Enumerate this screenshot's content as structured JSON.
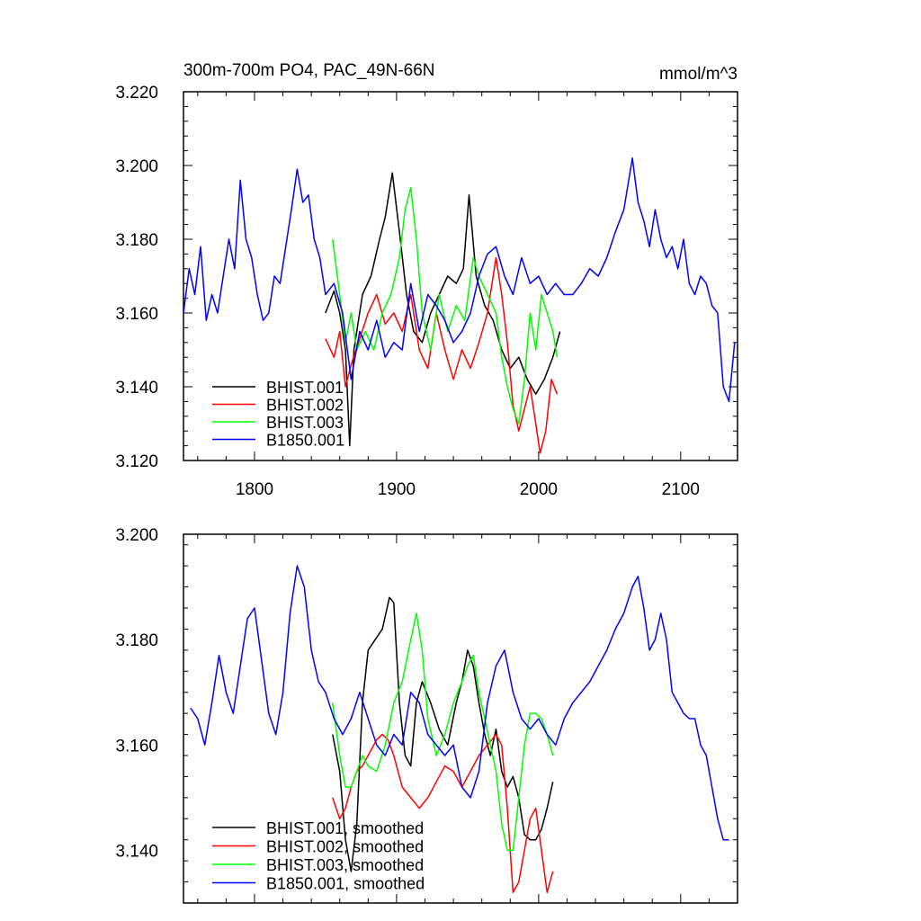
{
  "chart_data": [
    {
      "type": "line",
      "title": "300m-700m PO4, PAC_49N-66N",
      "units_label": "mmol/m^3",
      "xlim": [
        1750,
        2140
      ],
      "ylim": [
        3.12,
        3.22
      ],
      "xticks": [
        1800,
        1900,
        2000,
        2100
      ],
      "xtick_labels": [
        "1800",
        "1900",
        "2000",
        "2100"
      ],
      "yticks": [
        3.12,
        3.14,
        3.16,
        3.18,
        3.2,
        3.22
      ],
      "ytick_labels": [
        "3.120",
        "3.140",
        "3.160",
        "3.180",
        "3.200",
        "3.220"
      ],
      "legend_position": "bottom-left",
      "series": [
        {
          "name": "BHIST.001",
          "color": "#000000",
          "x": [
            1850,
            1856,
            1860,
            1864,
            1867,
            1870,
            1876,
            1882,
            1888,
            1892,
            1897,
            1902,
            1907,
            1912,
            1918,
            1924,
            1930,
            1936,
            1942,
            1947,
            1951,
            1956,
            1962,
            1968,
            1974,
            1980,
            1986,
            1992,
            1998,
            2004,
            2010,
            2015
          ],
          "y": [
            3.16,
            3.166,
            3.16,
            3.15,
            3.124,
            3.15,
            3.165,
            3.17,
            3.18,
            3.186,
            3.198,
            3.182,
            3.165,
            3.155,
            3.152,
            3.16,
            3.165,
            3.17,
            3.168,
            3.172,
            3.192,
            3.17,
            3.162,
            3.158,
            3.15,
            3.145,
            3.148,
            3.142,
            3.138,
            3.142,
            3.148,
            3.155
          ]
        },
        {
          "name": "BHIST.002",
          "color": "#ff0000",
          "x": [
            1850,
            1856,
            1860,
            1864,
            1868,
            1874,
            1880,
            1886,
            1892,
            1898,
            1904,
            1910,
            1916,
            1922,
            1928,
            1934,
            1940,
            1946,
            1952,
            1958,
            1964,
            1970,
            1974,
            1978,
            1982,
            1986,
            1990,
            1994,
            1998,
            2001,
            2005,
            2009,
            2013
          ],
          "y": [
            3.153,
            3.148,
            3.155,
            3.14,
            3.146,
            3.153,
            3.16,
            3.165,
            3.157,
            3.16,
            3.155,
            3.165,
            3.15,
            3.145,
            3.16,
            3.15,
            3.142,
            3.15,
            3.145,
            3.152,
            3.16,
            3.175,
            3.165,
            3.152,
            3.135,
            3.128,
            3.134,
            3.14,
            3.13,
            3.122,
            3.128,
            3.142,
            3.138
          ]
        },
        {
          "name": "BHIST.003",
          "color": "#00ff00",
          "x": [
            1855,
            1860,
            1864,
            1868,
            1872,
            1878,
            1884,
            1890,
            1896,
            1902,
            1906,
            1910,
            1914,
            1918,
            1924,
            1930,
            1936,
            1942,
            1948,
            1954,
            1958,
            1964,
            1970,
            1974,
            1978,
            1982,
            1986,
            1990,
            1994,
            1998,
            2002,
            2006,
            2010,
            2013
          ],
          "y": [
            3.18,
            3.165,
            3.152,
            3.16,
            3.15,
            3.155,
            3.15,
            3.16,
            3.165,
            3.175,
            3.188,
            3.194,
            3.18,
            3.16,
            3.15,
            3.165,
            3.155,
            3.162,
            3.158,
            3.175,
            3.17,
            3.165,
            3.16,
            3.148,
            3.14,
            3.134,
            3.13,
            3.142,
            3.16,
            3.15,
            3.165,
            3.16,
            3.155,
            3.148
          ]
        },
        {
          "name": "B1850.001",
          "color": "#0000ff",
          "x": [
            1750,
            1754,
            1758,
            1762,
            1766,
            1770,
            1774,
            1778,
            1782,
            1786,
            1790,
            1794,
            1798,
            1802,
            1806,
            1810,
            1814,
            1818,
            1822,
            1826,
            1830,
            1834,
            1838,
            1842,
            1846,
            1850,
            1856,
            1862,
            1868,
            1874,
            1880,
            1886,
            1892,
            1898,
            1904,
            1910,
            1916,
            1922,
            1928,
            1934,
            1940,
            1946,
            1952,
            1958,
            1964,
            1970,
            1976,
            1982,
            1988,
            1994,
            2000,
            2006,
            2012,
            2018,
            2024,
            2030,
            2036,
            2042,
            2048,
            2054,
            2060,
            2066,
            2070,
            2074,
            2078,
            2082,
            2086,
            2090,
            2094,
            2098,
            2102,
            2106,
            2110,
            2114,
            2118,
            2122,
            2126,
            2130,
            2134,
            2138
          ],
          "y": [
            3.16,
            3.172,
            3.165,
            3.178,
            3.158,
            3.165,
            3.16,
            3.17,
            3.18,
            3.172,
            3.196,
            3.18,
            3.175,
            3.165,
            3.158,
            3.16,
            3.17,
            3.168,
            3.178,
            3.188,
            3.199,
            3.19,
            3.192,
            3.18,
            3.175,
            3.165,
            3.168,
            3.16,
            3.142,
            3.155,
            3.15,
            3.158,
            3.148,
            3.152,
            3.15,
            3.168,
            3.155,
            3.165,
            3.162,
            3.158,
            3.152,
            3.155,
            3.16,
            3.17,
            3.176,
            3.178,
            3.17,
            3.165,
            3.175,
            3.168,
            3.17,
            3.165,
            3.168,
            3.165,
            3.165,
            3.168,
            3.172,
            3.17,
            3.175,
            3.182,
            3.188,
            3.202,
            3.19,
            3.185,
            3.178,
            3.188,
            3.18,
            3.175,
            3.178,
            3.172,
            3.18,
            3.168,
            3.165,
            3.17,
            3.168,
            3.162,
            3.16,
            3.14,
            3.136,
            3.152
          ]
        }
      ]
    },
    {
      "type": "line",
      "xlim": [
        1750,
        2140
      ],
      "ylim": [
        3.13,
        3.2
      ],
      "xticks": [
        1800,
        1900,
        2000,
        2100
      ],
      "yticks": [
        3.14,
        3.16,
        3.18,
        3.2
      ],
      "ytick_labels": [
        "3.140",
        "3.160",
        "3.180",
        "3.200"
      ],
      "legend_position": "bottom-left",
      "series": [
        {
          "name": "BHIST.001, smoothed",
          "color": "#000000",
          "x": [
            1855,
            1860,
            1864,
            1868,
            1872,
            1876,
            1880,
            1885,
            1890,
            1895,
            1898,
            1902,
            1906,
            1910,
            1914,
            1918,
            1924,
            1930,
            1936,
            1942,
            1946,
            1950,
            1954,
            1958,
            1962,
            1966,
            1970,
            1974,
            1978,
            1982,
            1986,
            1990,
            1994,
            1998,
            2002,
            2006,
            2010
          ],
          "y": [
            3.162,
            3.155,
            3.142,
            3.136,
            3.145,
            3.168,
            3.178,
            3.18,
            3.182,
            3.188,
            3.187,
            3.168,
            3.158,
            3.156,
            3.168,
            3.172,
            3.168,
            3.163,
            3.16,
            3.168,
            3.172,
            3.178,
            3.175,
            3.168,
            3.162,
            3.158,
            3.163,
            3.155,
            3.152,
            3.154,
            3.15,
            3.143,
            3.142,
            3.142,
            3.144,
            3.148,
            3.153
          ]
        },
        {
          "name": "BHIST.002, smoothed",
          "color": "#ff0000",
          "x": [
            1855,
            1860,
            1864,
            1868,
            1872,
            1876,
            1880,
            1886,
            1890,
            1894,
            1898,
            1904,
            1910,
            1916,
            1922,
            1928,
            1934,
            1940,
            1946,
            1952,
            1958,
            1964,
            1970,
            1974,
            1978,
            1982,
            1986,
            1990,
            1994,
            1998,
            2002,
            2006,
            2010
          ],
          "y": [
            3.15,
            3.146,
            3.148,
            3.152,
            3.155,
            3.156,
            3.158,
            3.161,
            3.162,
            3.161,
            3.158,
            3.152,
            3.15,
            3.148,
            3.15,
            3.153,
            3.156,
            3.155,
            3.152,
            3.155,
            3.158,
            3.16,
            3.162,
            3.16,
            3.148,
            3.132,
            3.134,
            3.14,
            3.146,
            3.148,
            3.14,
            3.132,
            3.136
          ]
        },
        {
          "name": "BHIST.003, smoothed",
          "color": "#00ff00",
          "x": [
            1855,
            1860,
            1864,
            1868,
            1872,
            1876,
            1880,
            1886,
            1892,
            1898,
            1904,
            1910,
            1914,
            1918,
            1922,
            1928,
            1934,
            1940,
            1946,
            1950,
            1954,
            1958,
            1962,
            1966,
            1970,
            1974,
            1978,
            1982,
            1986,
            1990,
            1994,
            1998,
            2002,
            2006,
            2010
          ],
          "y": [
            3.168,
            3.158,
            3.152,
            3.152,
            3.155,
            3.158,
            3.156,
            3.155,
            3.16,
            3.168,
            3.172,
            3.18,
            3.185,
            3.178,
            3.165,
            3.158,
            3.162,
            3.168,
            3.172,
            3.175,
            3.177,
            3.17,
            3.165,
            3.16,
            3.155,
            3.145,
            3.14,
            3.14,
            3.15,
            3.16,
            3.166,
            3.166,
            3.165,
            3.162,
            3.158
          ]
        },
        {
          "name": "B1850.001, smoothed",
          "color": "#0000ff",
          "x": [
            1755,
            1760,
            1765,
            1770,
            1775,
            1780,
            1785,
            1790,
            1795,
            1800,
            1805,
            1810,
            1815,
            1820,
            1825,
            1830,
            1835,
            1840,
            1845,
            1850,
            1856,
            1862,
            1868,
            1874,
            1880,
            1886,
            1892,
            1898,
            1904,
            1910,
            1916,
            1922,
            1928,
            1934,
            1940,
            1946,
            1952,
            1958,
            1964,
            1970,
            1976,
            1982,
            1988,
            1994,
            2000,
            2006,
            2012,
            2018,
            2024,
            2030,
            2036,
            2042,
            2048,
            2054,
            2060,
            2066,
            2070,
            2074,
            2078,
            2082,
            2086,
            2090,
            2094,
            2098,
            2102,
            2106,
            2110,
            2114,
            2118,
            2122,
            2126,
            2130,
            2134
          ],
          "y": [
            3.167,
            3.165,
            3.16,
            3.168,
            3.177,
            3.17,
            3.166,
            3.175,
            3.184,
            3.186,
            3.176,
            3.166,
            3.162,
            3.17,
            3.185,
            3.194,
            3.19,
            3.178,
            3.172,
            3.17,
            3.165,
            3.162,
            3.165,
            3.17,
            3.165,
            3.16,
            3.158,
            3.162,
            3.16,
            3.17,
            3.168,
            3.162,
            3.16,
            3.158,
            3.16,
            3.152,
            3.15,
            3.155,
            3.168,
            3.175,
            3.178,
            3.17,
            3.165,
            3.163,
            3.165,
            3.162,
            3.16,
            3.165,
            3.168,
            3.17,
            3.172,
            3.175,
            3.178,
            3.182,
            3.185,
            3.19,
            3.192,
            3.186,
            3.178,
            3.18,
            3.185,
            3.18,
            3.17,
            3.168,
            3.166,
            3.165,
            3.165,
            3.16,
            3.158,
            3.152,
            3.146,
            3.142,
            3.142
          ]
        }
      ]
    }
  ]
}
